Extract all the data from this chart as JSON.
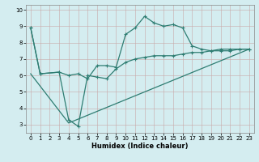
{
  "title": "",
  "xlabel": "Humidex (Indice chaleur)",
  "bg_color": "#d4edf0",
  "line_color": "#2e7d72",
  "grid_color": "#b8d0d4",
  "xlim": [
    -0.5,
    23.5
  ],
  "ylim": [
    2.5,
    10.3
  ],
  "xticks": [
    0,
    1,
    2,
    3,
    4,
    5,
    6,
    7,
    8,
    9,
    10,
    11,
    12,
    13,
    14,
    15,
    16,
    17,
    18,
    19,
    20,
    21,
    22,
    23
  ],
  "yticks": [
    3,
    4,
    5,
    6,
    7,
    8,
    9,
    10
  ],
  "line1_x": [
    0,
    1,
    3,
    4,
    5,
    6,
    7,
    8,
    9,
    10,
    11,
    12,
    13,
    14,
    15,
    16,
    17,
    18,
    19,
    20,
    21,
    22,
    23
  ],
  "line1_y": [
    8.9,
    6.1,
    6.2,
    6.0,
    6.1,
    5.8,
    6.6,
    6.6,
    6.5,
    8.5,
    8.9,
    9.6,
    9.2,
    9.0,
    9.1,
    8.9,
    7.8,
    7.6,
    7.5,
    7.6,
    7.6,
    7.6,
    7.6
  ],
  "line2_x": [
    0,
    1,
    3,
    4,
    5,
    6,
    7,
    8,
    9,
    10,
    11,
    12,
    13,
    14,
    15,
    16,
    17,
    18,
    19,
    20,
    21,
    22,
    23
  ],
  "line2_y": [
    8.9,
    6.1,
    6.2,
    3.3,
    2.9,
    6.0,
    5.9,
    5.8,
    6.4,
    6.8,
    7.0,
    7.1,
    7.2,
    7.2,
    7.2,
    7.3,
    7.4,
    7.4,
    7.5,
    7.5,
    7.5,
    7.6,
    7.6
  ],
  "line3_x": [
    0,
    4,
    23
  ],
  "line3_y": [
    6.1,
    3.1,
    7.6
  ]
}
